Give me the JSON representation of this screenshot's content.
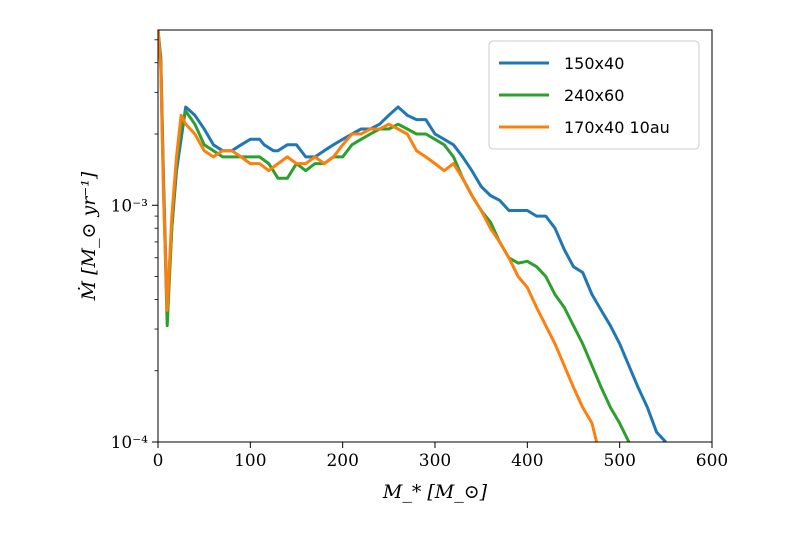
{
  "chart_data": {
    "type": "line",
    "xlabel": "M_* [M_⊙]",
    "ylabel": "Ṁ [M_⊙ yr⁻¹]",
    "xlim": [
      0,
      600
    ],
    "ylim": [
      0.0001,
      0.0055
    ],
    "yscale": "log",
    "x_ticks": [
      0,
      100,
      200,
      300,
      400,
      500,
      600
    ],
    "x_tick_labels": [
      "0",
      "100",
      "200",
      "300",
      "400",
      "500",
      "600"
    ],
    "y_ticks": [
      0.0001,
      0.001
    ],
    "y_tick_labels": [
      "10⁻⁴",
      "10⁻³"
    ],
    "grid": false,
    "legend_position": "top-right",
    "series": [
      {
        "name": "150x40",
        "color": "#1f77b4",
        "x": [
          0,
          3,
          6,
          10,
          15,
          20,
          25,
          30,
          40,
          50,
          60,
          70,
          80,
          90,
          100,
          110,
          115,
          125,
          130,
          140,
          150,
          160,
          170,
          180,
          190,
          200,
          210,
          220,
          230,
          240,
          250,
          260,
          270,
          280,
          290,
          300,
          310,
          320,
          330,
          340,
          350,
          360,
          370,
          380,
          390,
          400,
          410,
          420,
          430,
          440,
          450,
          460,
          470,
          480,
          490,
          500,
          510,
          520,
          530,
          540,
          550
        ],
        "values": [
          0.0055,
          0.0042,
          0.0013,
          0.00035,
          0.0008,
          0.0014,
          0.0019,
          0.0026,
          0.0024,
          0.0021,
          0.0018,
          0.0017,
          0.0017,
          0.0018,
          0.0019,
          0.0019,
          0.0018,
          0.0017,
          0.0017,
          0.0018,
          0.0018,
          0.0016,
          0.0016,
          0.0017,
          0.0018,
          0.0019,
          0.002,
          0.0021,
          0.0021,
          0.0022,
          0.0024,
          0.0026,
          0.0024,
          0.0023,
          0.0023,
          0.002,
          0.0019,
          0.0018,
          0.0016,
          0.0014,
          0.0012,
          0.0011,
          0.00105,
          0.00095,
          0.00095,
          0.00095,
          0.0009,
          0.0009,
          0.0008,
          0.00065,
          0.00055,
          0.00052,
          0.00042,
          0.00036,
          0.00031,
          0.00026,
          0.00021,
          0.00017,
          0.00014,
          0.00011,
          0.0001
        ]
      },
      {
        "name": "240x60",
        "color": "#2ca02c",
        "x": [
          0,
          3,
          6,
          10,
          15,
          20,
          25,
          30,
          40,
          50,
          60,
          70,
          80,
          90,
          100,
          110,
          120,
          130,
          140,
          150,
          160,
          170,
          180,
          190,
          200,
          210,
          220,
          230,
          240,
          250,
          260,
          270,
          280,
          290,
          300,
          310,
          320,
          330,
          340,
          350,
          360,
          370,
          380,
          390,
          400,
          410,
          420,
          430,
          440,
          450,
          460,
          470,
          480,
          490,
          500,
          510
        ],
        "values": [
          0.0055,
          0.004,
          0.0012,
          0.00031,
          0.0008,
          0.0015,
          0.0021,
          0.0025,
          0.0022,
          0.0018,
          0.0017,
          0.0016,
          0.0016,
          0.0016,
          0.0016,
          0.0016,
          0.0015,
          0.0013,
          0.0013,
          0.0015,
          0.0014,
          0.0015,
          0.0015,
          0.0016,
          0.0016,
          0.0018,
          0.0019,
          0.002,
          0.0021,
          0.0021,
          0.0022,
          0.0021,
          0.002,
          0.002,
          0.0019,
          0.0018,
          0.0016,
          0.0013,
          0.0011,
          0.00095,
          0.00085,
          0.0007,
          0.0006,
          0.00057,
          0.00058,
          0.00055,
          0.0005,
          0.00042,
          0.00037,
          0.00031,
          0.00026,
          0.00021,
          0.00017,
          0.00014,
          0.00012,
          0.0001
        ]
      },
      {
        "name": "170x40 10au",
        "color": "#ff7f0e",
        "x": [
          0,
          3,
          6,
          10,
          15,
          20,
          25,
          30,
          40,
          50,
          60,
          70,
          80,
          90,
          100,
          110,
          120,
          130,
          140,
          150,
          160,
          170,
          180,
          190,
          200,
          210,
          220,
          230,
          240,
          250,
          260,
          270,
          280,
          290,
          300,
          310,
          320,
          330,
          340,
          350,
          360,
          370,
          380,
          390,
          400,
          410,
          420,
          430,
          440,
          450,
          460,
          470,
          475
        ],
        "values": [
          0.0055,
          0.0038,
          0.0011,
          0.00036,
          0.0009,
          0.0016,
          0.0024,
          0.0022,
          0.002,
          0.0017,
          0.0016,
          0.0017,
          0.0017,
          0.0016,
          0.0015,
          0.0015,
          0.0014,
          0.0015,
          0.0016,
          0.0015,
          0.0015,
          0.0016,
          0.0015,
          0.0016,
          0.0018,
          0.002,
          0.002,
          0.0021,
          0.0021,
          0.0022,
          0.0021,
          0.002,
          0.0017,
          0.0016,
          0.0015,
          0.0014,
          0.0015,
          0.0013,
          0.0011,
          0.00095,
          0.0008,
          0.0007,
          0.0006,
          0.0005,
          0.00045,
          0.00037,
          0.00031,
          0.00026,
          0.00021,
          0.00017,
          0.00014,
          0.00012,
          0.0001
        ]
      }
    ]
  }
}
